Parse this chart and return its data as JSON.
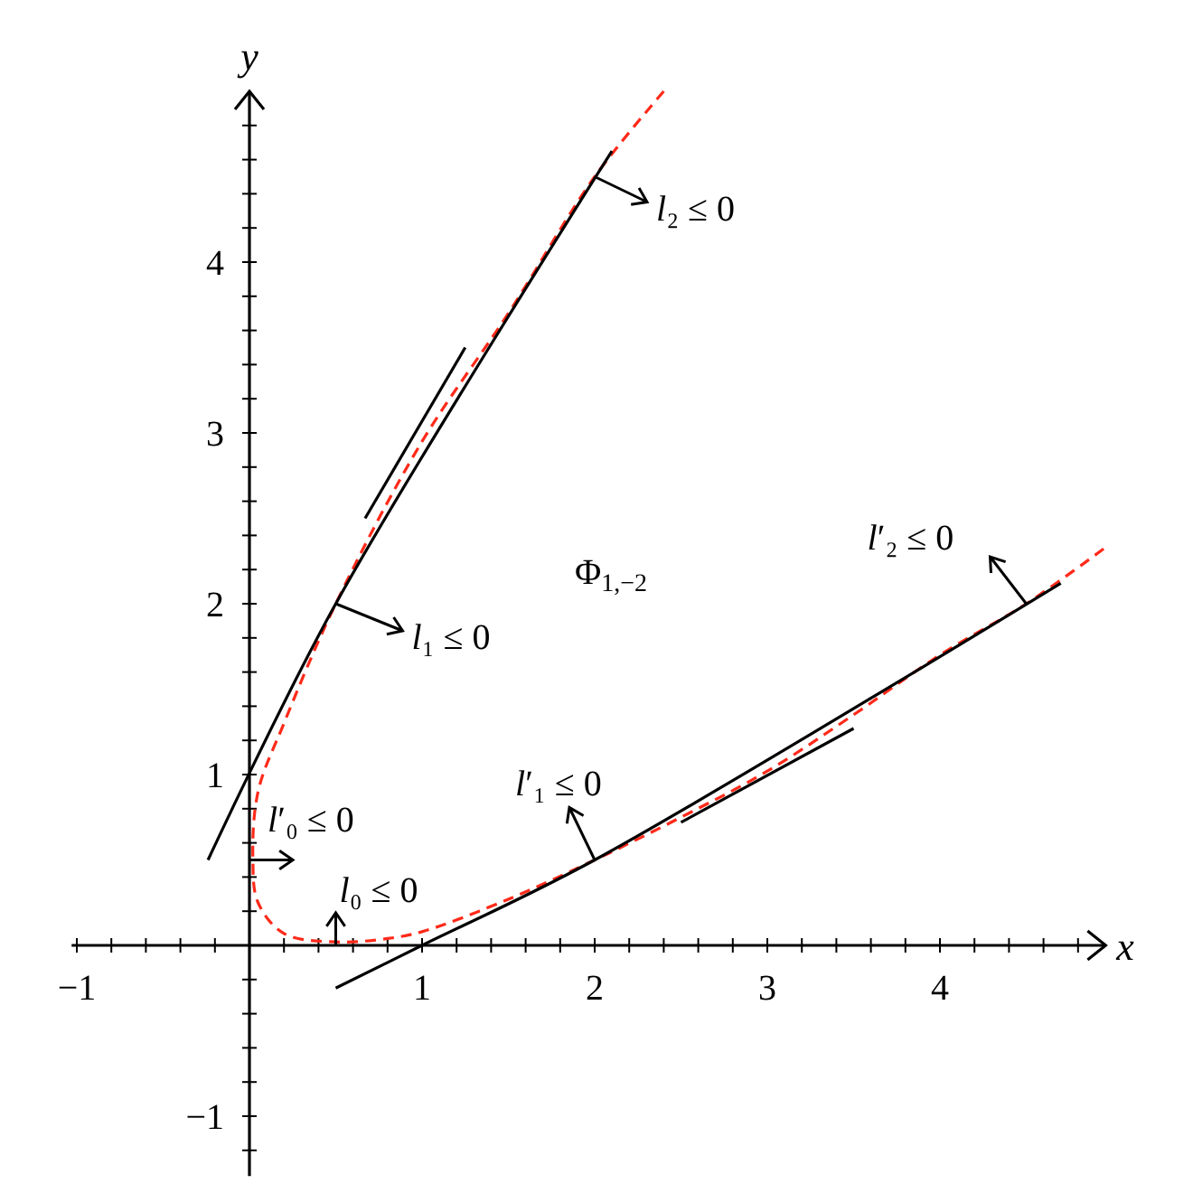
{
  "chart_data": {
    "type": "line",
    "xlabel": "x",
    "ylabel": "y",
    "xlim": [
      -1.03,
      4.96
    ],
    "ylim": [
      -1.35,
      5.0
    ],
    "xticks": [
      {
        "value": -1,
        "label": "−1"
      },
      {
        "value": -0.8,
        "label": null
      },
      {
        "value": -0.6,
        "label": null
      },
      {
        "value": -0.4,
        "label": null
      },
      {
        "value": -0.2,
        "label": null
      },
      {
        "value": 0.2,
        "label": null
      },
      {
        "value": 0.4,
        "label": null
      },
      {
        "value": 0.6,
        "label": null
      },
      {
        "value": 0.8,
        "label": null
      },
      1,
      {
        "value": 1.2,
        "label": null
      },
      {
        "value": 1.4,
        "label": null
      },
      {
        "value": 1.6,
        "label": null
      },
      {
        "value": 1.8,
        "label": null
      },
      2,
      {
        "value": 2.2,
        "label": null
      },
      {
        "value": 2.4,
        "label": null
      },
      {
        "value": 2.6,
        "label": null
      },
      {
        "value": 2.8,
        "label": null
      },
      3,
      {
        "value": 3.2,
        "label": null
      },
      {
        "value": 3.4,
        "label": null
      },
      {
        "value": 3.6,
        "label": null
      },
      {
        "value": 3.8,
        "label": null
      },
      4,
      {
        "value": 4.2,
        "label": null
      },
      {
        "value": 4.4,
        "label": null
      },
      {
        "value": 4.6,
        "label": null
      },
      {
        "value": 4.8,
        "label": null
      }
    ],
    "yticks": [
      {
        "value": -1.2,
        "label": null
      },
      {
        "value": -1,
        "label": "−1"
      },
      {
        "value": -0.8,
        "label": null
      },
      {
        "value": -0.6,
        "label": null
      },
      {
        "value": -0.4,
        "label": null
      },
      {
        "value": -0.2,
        "label": null
      },
      {
        "value": 0.2,
        "label": null
      },
      {
        "value": 0.4,
        "label": null
      },
      {
        "value": 0.6,
        "label": null
      },
      {
        "value": 0.8,
        "label": null
      },
      1,
      {
        "value": 1.2,
        "label": null
      },
      {
        "value": 1.4,
        "label": null
      },
      {
        "value": 1.6,
        "label": null
      },
      {
        "value": 1.8,
        "label": null
      },
      2,
      {
        "value": 2.2,
        "label": null
      },
      {
        "value": 2.4,
        "label": null
      },
      {
        "value": 2.6,
        "label": null
      },
      {
        "value": 2.8,
        "label": null
      },
      3,
      {
        "value": 3.2,
        "label": null
      },
      {
        "value": 3.4,
        "label": null
      },
      {
        "value": 3.6,
        "label": null
      },
      {
        "value": 3.8,
        "label": null
      },
      4,
      {
        "value": 4.2,
        "label": null
      },
      {
        "value": 4.4,
        "label": null
      },
      {
        "value": 4.6,
        "label": null
      },
      {
        "value": 4.8,
        "label": null
      }
    ],
    "grid": false,
    "series": [
      {
        "color": "#ff2a1a",
        "line_style": "dashed",
        "x": [
          2.4,
          2.0,
          1.5,
          1.0,
          0.5,
          0.2,
          0.05,
          0.02,
          0.05,
          0.2,
          0.5,
          0.8,
          1.0,
          1.5,
          2.0,
          2.5,
          3.0,
          3.5,
          4.0,
          4.5,
          4.96
        ],
        "values": [
          5.0,
          4.5,
          3.7,
          2.95,
          2.0,
          1.3,
          0.9,
          0.5,
          0.25,
          0.07,
          0.02,
          0.04,
          0.08,
          0.27,
          0.5,
          0.75,
          1.02,
          1.35,
          1.7,
          2.0,
          2.33
        ]
      },
      {
        "color": "#000000",
        "line_style": "solid",
        "x": [
          -0.24,
          0.5,
          2.1
        ],
        "values": [
          0.5,
          2.0,
          4.65
        ]
      },
      {
        "color": "#000000",
        "line_style": "solid",
        "x": [
          0.67,
          1.25
        ],
        "values": [
          2.5,
          3.5
        ]
      },
      {
        "color": "#000000",
        "line_style": "solid",
        "x": [
          0.5,
          1.0,
          2.0,
          4.7
        ],
        "values": [
          -0.25,
          0.0,
          0.5,
          2.12
        ]
      },
      {
        "color": "#000000",
        "line_style": "solid",
        "x": [
          2.5,
          3.5
        ],
        "values": [
          0.72,
          1.27
        ]
      }
    ],
    "annotations": [
      {
        "text": "l₂ ≤ 0",
        "x": 2.0,
        "y": 4.5
      },
      {
        "text": "l₁ ≤ 0",
        "x": 0.5,
        "y": 2.0
      },
      {
        "text": "l′₀ ≤ 0",
        "x": 0.0,
        "y": 0.5
      },
      {
        "text": "l₀ ≤ 0",
        "x": 0.5,
        "y": 0.0
      },
      {
        "text": "l′₁ ≤ 0",
        "x": 2.0,
        "y": 0.5
      },
      {
        "text": "l′₂ ≤ 0",
        "x": 4.5,
        "y": 2.0
      },
      "Φ$_{1,−2}$"
    ]
  }
}
